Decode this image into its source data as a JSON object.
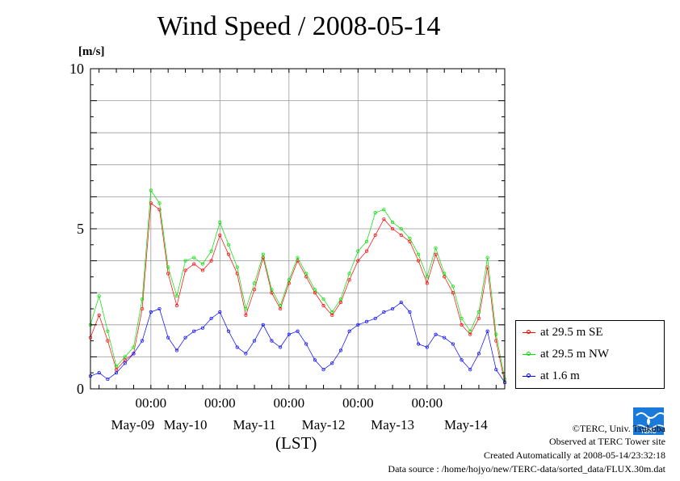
{
  "chart_data": {
    "type": "line",
    "title": "Wind Speed / 2008-05-14",
    "ylabel": "[m/s]",
    "xlabel": "(LST)",
    "ylim": [
      0,
      10
    ],
    "y_ticks": [
      "0",
      "5",
      "10"
    ],
    "x_time_ticks": [
      "00:00",
      "00:00",
      "00:00",
      "00:00",
      "00:00"
    ],
    "x_day_labels": [
      "May-09",
      "May-10",
      "May-11",
      "May-12",
      "May-13",
      "May-14"
    ],
    "x_hours_start": 0,
    "x_hours_end": 144,
    "grid": true,
    "legend_position": "right",
    "series": [
      {
        "name": "at 29.5 m SE",
        "color": "#ff0000",
        "x_hours": [
          0,
          3,
          6,
          9,
          12,
          15,
          18,
          21,
          24,
          27,
          30,
          33,
          36,
          39,
          42,
          45,
          48,
          51,
          54,
          57,
          60,
          63,
          66,
          69,
          72,
          75,
          78,
          81,
          84,
          87,
          90,
          93,
          96,
          99,
          102,
          105,
          108,
          111,
          114,
          117,
          120,
          123,
          126,
          129,
          132,
          135,
          138,
          141,
          144
        ],
        "values": [
          1.6,
          2.3,
          1.5,
          0.6,
          0.9,
          1.1,
          2.5,
          5.8,
          5.6,
          3.6,
          2.6,
          3.7,
          3.9,
          3.7,
          4.0,
          4.8,
          4.2,
          3.6,
          2.3,
          3.1,
          4.1,
          3.0,
          2.5,
          3.3,
          4.0,
          3.5,
          3.0,
          2.6,
          2.3,
          2.7,
          3.4,
          4.0,
          4.3,
          4.8,
          5.3,
          5.0,
          4.8,
          4.6,
          4.0,
          3.3,
          4.2,
          3.5,
          3.0,
          2.0,
          1.7,
          2.2,
          3.8,
          1.5,
          0.2
        ]
      },
      {
        "name": "at 29.5 m NW",
        "color": "#00dd00",
        "x_hours": [
          0,
          3,
          6,
          9,
          12,
          15,
          18,
          21,
          24,
          27,
          30,
          33,
          36,
          39,
          42,
          45,
          48,
          51,
          54,
          57,
          60,
          63,
          66,
          69,
          72,
          75,
          78,
          81,
          84,
          87,
          90,
          93,
          96,
          99,
          102,
          105,
          108,
          111,
          114,
          117,
          120,
          123,
          126,
          129,
          132,
          135,
          138,
          141,
          144
        ],
        "values": [
          2.0,
          2.9,
          1.8,
          0.7,
          1.0,
          1.3,
          2.8,
          6.2,
          5.8,
          3.8,
          2.9,
          4.0,
          4.1,
          3.9,
          4.3,
          5.2,
          4.5,
          3.8,
          2.5,
          3.3,
          4.2,
          3.1,
          2.6,
          3.4,
          4.1,
          3.6,
          3.1,
          2.8,
          2.4,
          2.8,
          3.6,
          4.3,
          4.6,
          5.5,
          5.6,
          5.2,
          5.0,
          4.7,
          4.2,
          3.5,
          4.4,
          3.6,
          3.2,
          2.2,
          1.8,
          2.4,
          4.1,
          1.7,
          0.3
        ]
      },
      {
        "name": "at 1.6 m",
        "color": "#0000ff",
        "x_hours": [
          0,
          3,
          6,
          9,
          12,
          15,
          18,
          21,
          24,
          27,
          30,
          33,
          36,
          39,
          42,
          45,
          48,
          51,
          54,
          57,
          60,
          63,
          66,
          69,
          72,
          75,
          78,
          81,
          84,
          87,
          90,
          93,
          96,
          99,
          102,
          105,
          108,
          111,
          114,
          117,
          120,
          123,
          126,
          129,
          132,
          135,
          138,
          141,
          144
        ],
        "values": [
          0.4,
          0.5,
          0.3,
          0.5,
          0.8,
          1.1,
          1.5,
          2.4,
          2.5,
          1.6,
          1.2,
          1.6,
          1.8,
          1.9,
          2.2,
          2.4,
          1.8,
          1.3,
          1.1,
          1.5,
          2.0,
          1.5,
          1.3,
          1.7,
          1.8,
          1.4,
          0.9,
          0.6,
          0.8,
          1.2,
          1.8,
          2.0,
          2.1,
          2.2,
          2.4,
          2.5,
          2.7,
          2.4,
          1.4,
          1.3,
          1.7,
          1.6,
          1.4,
          0.9,
          0.6,
          1.1,
          1.8,
          0.6,
          0.2
        ]
      }
    ]
  },
  "credits": {
    "copyright": "©TERC, Univ. Tsukuba",
    "observed": "Observed at TERC Tower site",
    "created": "Created Automatically at 2008-05-14/23:32:18",
    "source": "Data source : /home/hojyo/new/TERC-data/sorted_data/FLUX.30m.dat"
  },
  "logo": {
    "text": "TERC",
    "color": "#1a7ad9"
  }
}
